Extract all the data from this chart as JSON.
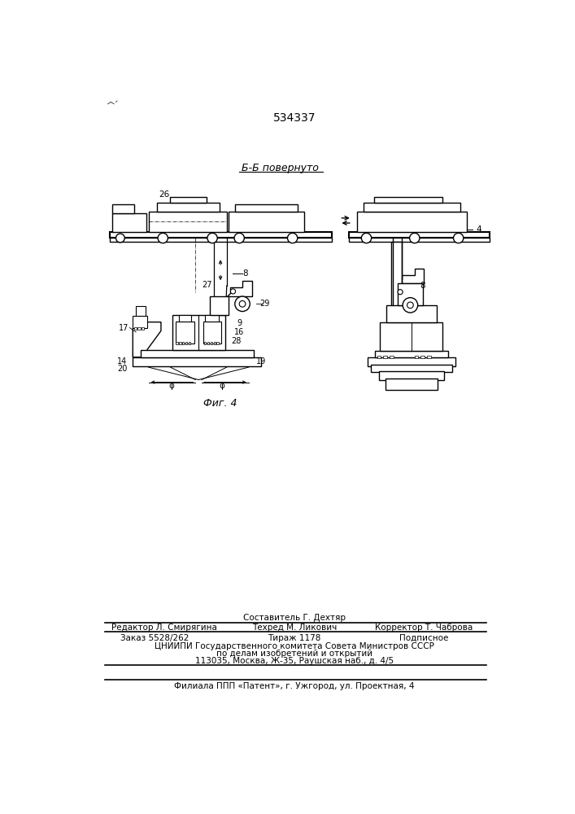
{
  "patent_number": "534337",
  "figure_label": "Фиг. 4",
  "section_label": "Б-Б повернуто",
  "bg_color": "#ffffff",
  "line_color": "#000000",
  "footer_line0": "Составитель Г. Дехтяр",
  "footer_line1": "Редактор Л. Смирягина",
  "footer_line1b": "Техред М. Ликович",
  "footer_line1c": "Корректор Т. Чаброва",
  "footer_line2a": "Заказ 5528/262",
  "footer_line2b": "Тираж 1178",
  "footer_line2c": "Подписное",
  "footer_line3": "ЦНИИПИ Государственного комитета Совета Министров СССР",
  "footer_line4": "по делам изобретений и открытий",
  "footer_line5": "113035, Москва, Ж-35, Раушская наб., д. 4/5",
  "footer_line6": "Филиала ППП «Патент», г. Ужгород, ул. Проектная, 4"
}
